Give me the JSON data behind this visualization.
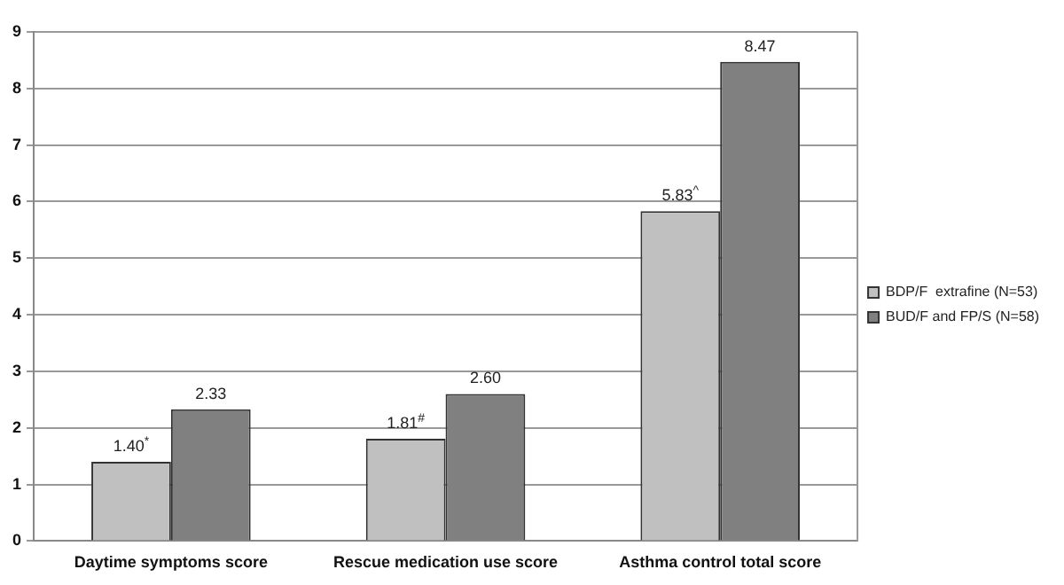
{
  "chart_data": {
    "type": "bar",
    "categories": [
      "Daytime symptoms score",
      "Rescue medication use score",
      "Asthma control total score"
    ],
    "series": [
      {
        "name": "BDP/F  extrafine (N=53)",
        "color": "#c0c0c0",
        "values": [
          1.4,
          1.81,
          5.83
        ],
        "value_labels": [
          "1.40$^{*}$",
          "1.81$^{#}$",
          "5.83$^{^}$"
        ]
      },
      {
        "name": "BUD/F and FP/S (N=58)",
        "color": "#808080",
        "values": [
          2.33,
          2.6,
          8.47
        ],
        "value_labels": [
          "2.33",
          "2.60",
          "8.47"
        ]
      }
    ],
    "ylim": [
      0,
      9
    ],
    "yticks": [
      0,
      1,
      2,
      3,
      4,
      5,
      6,
      7,
      8,
      9
    ],
    "grid": "y",
    "legend": "right"
  }
}
